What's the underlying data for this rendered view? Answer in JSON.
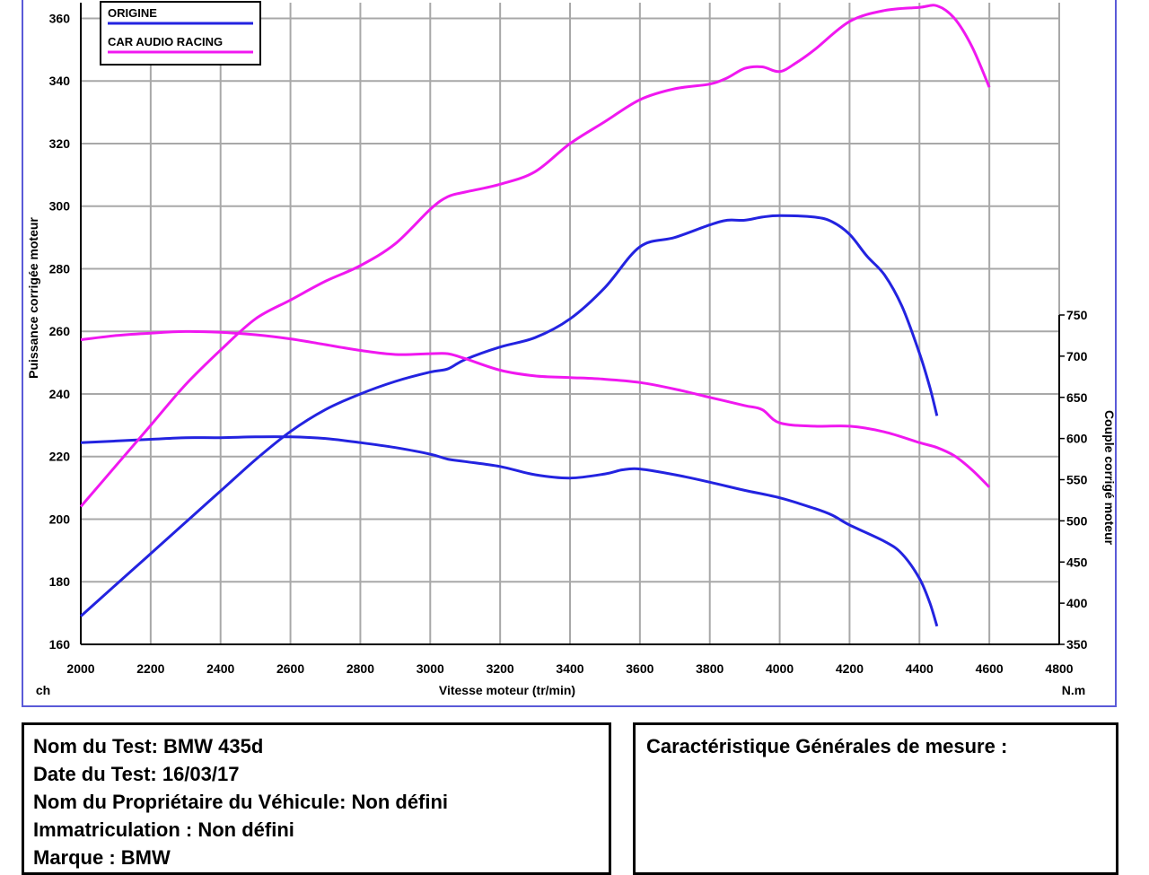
{
  "chart_data": {
    "type": "line",
    "xlabel": "Vitesse moteur (tr/min)",
    "ylabel_left": "Puissance corrigée moteur",
    "ylabel_right": "Couple corrigé moteur",
    "unit_left": "ch",
    "unit_right": "N.m",
    "xlim": [
      2000,
      4800
    ],
    "x_ticks": [
      2000,
      2200,
      2400,
      2600,
      2800,
      3000,
      3200,
      3400,
      3600,
      3800,
      4000,
      4200,
      4400,
      4600,
      4800
    ],
    "ylim_left": [
      160,
      365
    ],
    "y_ticks_left": [
      160,
      180,
      200,
      220,
      240,
      260,
      280,
      300,
      320,
      340,
      360
    ],
    "ylim_right": [
      350,
      750
    ],
    "y_ticks_right": [
      350,
      400,
      450,
      500,
      550,
      600,
      650,
      700,
      750
    ],
    "grid": true,
    "legend_position": "top-left",
    "series": [
      {
        "name": "ORIGINE",
        "color": "#2323e0",
        "power": {
          "x": [
            2000,
            2100,
            2200,
            2300,
            2400,
            2500,
            2600,
            2700,
            2800,
            2900,
            3000,
            3050,
            3100,
            3200,
            3300,
            3400,
            3500,
            3600,
            3700,
            3800,
            3850,
            3900,
            3950,
            4000,
            4100,
            4150,
            4200,
            4250,
            4300,
            4350,
            4400,
            4430,
            4450
          ],
          "y": [
            169,
            179,
            189,
            199,
            209,
            219,
            228,
            235,
            240,
            244,
            247,
            248,
            251,
            255,
            258,
            264,
            274,
            287,
            290,
            294,
            295.5,
            295.5,
            296.5,
            297,
            296.5,
            295,
            291,
            284,
            278,
            268,
            253,
            242,
            233
          ]
        },
        "torque": {
          "x": [
            2000,
            2100,
            2200,
            2300,
            2400,
            2500,
            2600,
            2700,
            2800,
            2900,
            3000,
            3050,
            3100,
            3200,
            3300,
            3400,
            3500,
            3550,
            3600,
            3700,
            3800,
            3900,
            4000,
            4100,
            4150,
            4200,
            4300,
            4350,
            4400,
            4430,
            4450
          ],
          "y": [
            595,
            597,
            599,
            601,
            601,
            602,
            602,
            600,
            595,
            589,
            581,
            575,
            572,
            566,
            556,
            552,
            557,
            562,
            563,
            556,
            547,
            537,
            528,
            515,
            507,
            495,
            475,
            460,
            430,
            400,
            372
          ]
        }
      },
      {
        "name": "CAR AUDIO RACING",
        "color": "#f018f0",
        "power": {
          "x": [
            2000,
            2100,
            2200,
            2300,
            2400,
            2500,
            2600,
            2700,
            2800,
            2900,
            3000,
            3050,
            3100,
            3200,
            3300,
            3400,
            3500,
            3600,
            3700,
            3800,
            3850,
            3900,
            3950,
            4000,
            4050,
            4100,
            4200,
            4300,
            4400,
            4450,
            4500,
            4550,
            4600
          ],
          "y": [
            204,
            217,
            230,
            243,
            254,
            264,
            270,
            276,
            281,
            288,
            299,
            303,
            304.5,
            307,
            311,
            320,
            327,
            334,
            337.5,
            339,
            341,
            344,
            344.5,
            343,
            346,
            350,
            359,
            362.5,
            363.5,
            364,
            360,
            351,
            338
          ]
        },
        "torque": {
          "x": [
            2000,
            2100,
            2200,
            2300,
            2400,
            2500,
            2600,
            2700,
            2800,
            2900,
            3000,
            3050,
            3100,
            3200,
            3300,
            3400,
            3500,
            3600,
            3700,
            3800,
            3900,
            3950,
            4000,
            4100,
            4200,
            4300,
            4400,
            4450,
            4500,
            4550,
            4600
          ],
          "y": [
            720,
            725,
            728,
            730,
            729,
            726,
            721,
            714,
            707,
            702,
            703,
            703,
            697,
            683,
            676,
            674,
            672,
            668,
            660,
            650,
            640,
            635,
            619,
            615,
            615,
            608,
            595,
            589,
            579,
            562,
            541
          ]
        }
      }
    ]
  },
  "test_info": {
    "lines": [
      "Nom du Test: BMW 435d",
      "Date du Test: 16/03/17",
      "Nom du Propriétaire du Véhicule: Non défini",
      "Immatriculation  : Non défini",
      "Marque  : BMW"
    ]
  },
  "measure_info": {
    "title": "Caractéristique Générales de mesure :"
  }
}
